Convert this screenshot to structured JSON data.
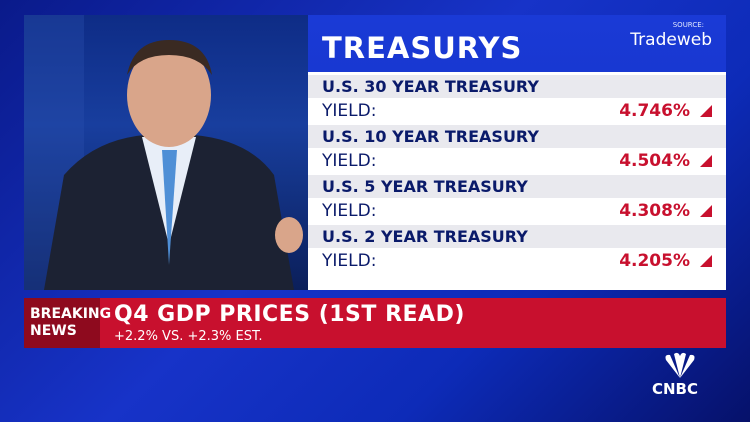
{
  "panel": {
    "title": "TREASURYS",
    "source": "SOURCE:",
    "provider": "Tradeweb",
    "rows": [
      {
        "name": "U.S. 30 YEAR TREASURY",
        "label": "YIELD:",
        "value": "4.746%"
      },
      {
        "name": "U.S. 10 YEAR TREASURY",
        "label": "YIELD:",
        "value": "4.504%"
      },
      {
        "name": "U.S. 5 YEAR TREASURY",
        "label": "YIELD:",
        "value": "4.308%"
      },
      {
        "name": "U.S. 2 YEAR TREASURY",
        "label": "YIELD:",
        "value": "4.205%"
      }
    ]
  },
  "ticker": {
    "tag_line1": "BREAKING",
    "tag_line2": "NEWS",
    "headline": "Q4 GDP PRICES (1ST READ)",
    "subline": "+2.2% VS. +2.3% EST."
  },
  "logo": "CNBC"
}
